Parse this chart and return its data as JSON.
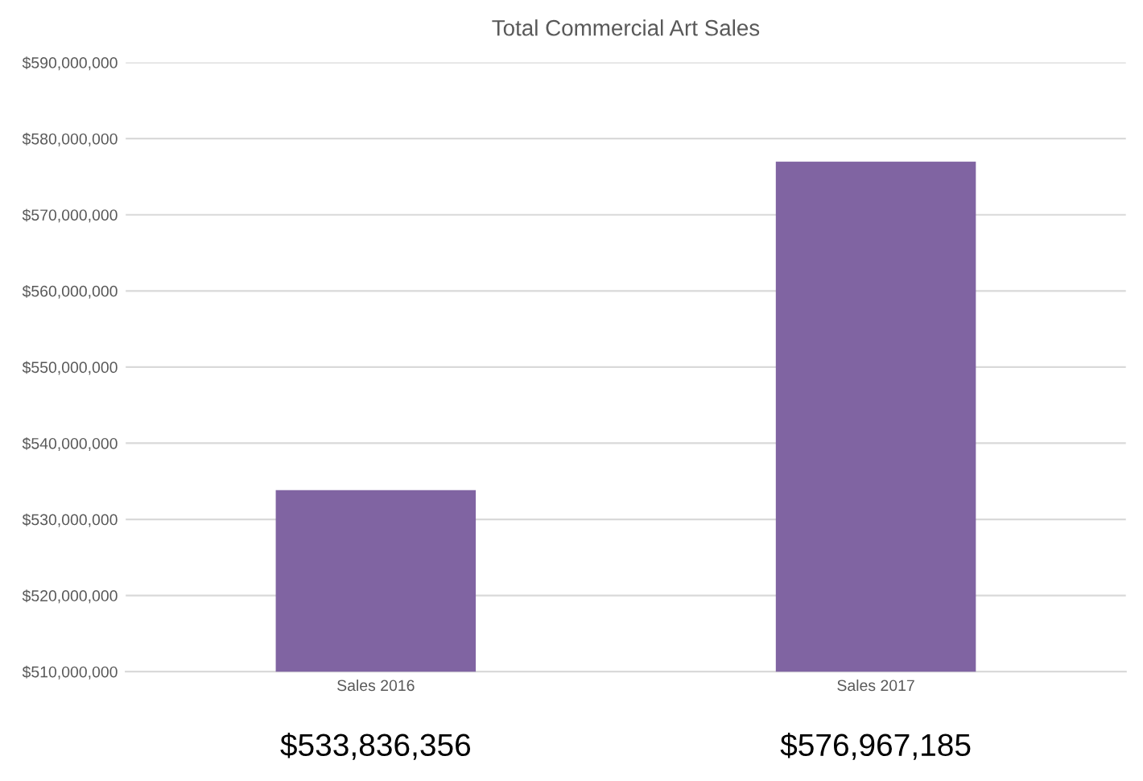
{
  "chart_data": {
    "type": "bar",
    "title": "Total Commercial Art Sales",
    "categories": [
      "Sales 2016",
      "Sales 2017"
    ],
    "values": [
      533836356,
      576967185
    ],
    "value_labels": [
      "$533,836,356",
      "$576,967,185"
    ],
    "color": "#8064a2",
    "ylim": [
      510000000,
      590000000
    ],
    "yticks": [
      {
        "value": 510000000,
        "label": "$510,000,000"
      },
      {
        "value": 520000000,
        "label": "$520,000,000"
      },
      {
        "value": 530000000,
        "label": "$530,000,000"
      },
      {
        "value": 540000000,
        "label": "$540,000,000"
      },
      {
        "value": 550000000,
        "label": "$550,000,000"
      },
      {
        "value": 560000000,
        "label": "$560,000,000"
      },
      {
        "value": 570000000,
        "label": "$570,000,000"
      },
      {
        "value": 580000000,
        "label": "$580,000,000"
      },
      {
        "value": 590000000,
        "label": "$590,000,000"
      }
    ],
    "grid": "y"
  }
}
